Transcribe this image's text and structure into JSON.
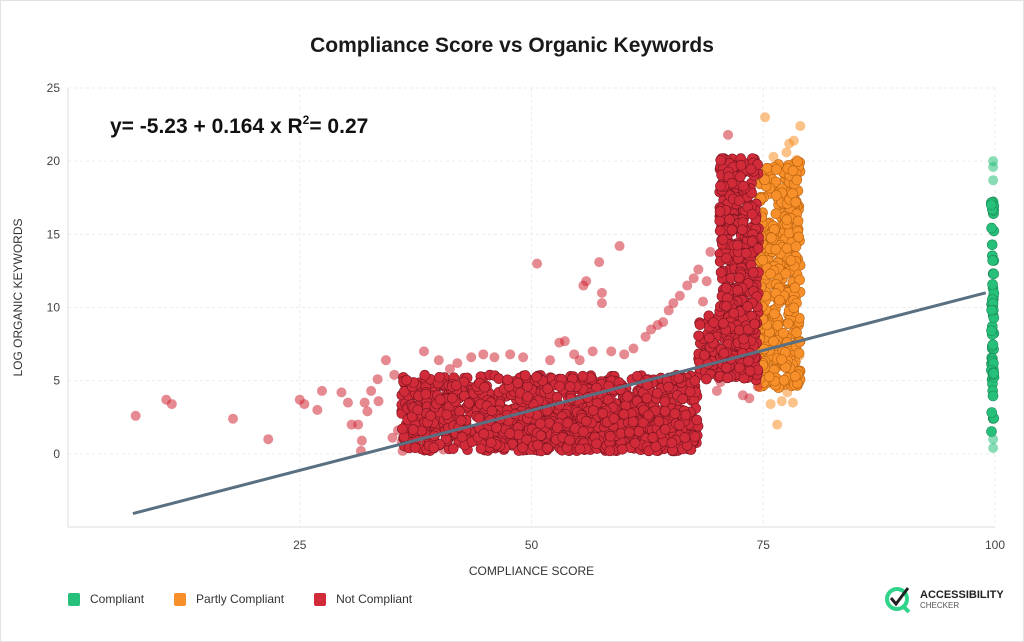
{
  "chart_data": {
    "type": "scatter",
    "title": "Compliance Score vs Organic Keywords",
    "xlabel": "COMPLIANCE SCORE",
    "ylabel": "LOG ORGANIC KEYWORDS",
    "xlim": [
      0,
      100
    ],
    "ylim": [
      -5,
      25
    ],
    "xticks": [
      25,
      50,
      75,
      100
    ],
    "yticks": [
      0,
      5,
      10,
      15,
      20,
      25
    ],
    "grid": true,
    "annotation": "y= -5.23 + 0.164 x R",
    "annotation_sup": "2",
    "annotation_tail": "= 0.27",
    "regression": {
      "intercept": -5.23,
      "slope": 0.164,
      "r2": 0.27,
      "x_range": [
        7,
        99
      ],
      "color": "#587082"
    },
    "legend_position": "bottom-left",
    "series": [
      {
        "name": "Compliant",
        "color": "#27c07a",
        "points": [
          [
            99.8,
            0.4
          ],
          [
            99.8,
            1.0
          ],
          [
            99.8,
            19.6
          ],
          [
            99.8,
            20.0
          ],
          [
            99.8,
            18.7
          ]
        ],
        "clusters": [
          {
            "x": [
              99.6,
              99.9
            ],
            "y": [
              1.5,
              18.5
            ],
            "count": 60
          }
        ]
      },
      {
        "name": "Partly Compliant",
        "color": "#f7902a",
        "points": [
          [
            75.2,
            23.0
          ],
          [
            78.3,
            21.4
          ],
          [
            79.0,
            22.4
          ],
          [
            77.8,
            21.2
          ],
          [
            76.1,
            20.3
          ],
          [
            77.5,
            20.6
          ],
          [
            78.6,
            20.1
          ],
          [
            76.5,
            2.0
          ],
          [
            77.0,
            3.6
          ],
          [
            75.8,
            3.4
          ],
          [
            78.2,
            3.5
          ],
          [
            77.6,
            4.2
          ],
          [
            79.0,
            5.6
          ],
          [
            78.9,
            6.7
          ],
          [
            76.2,
            4.7
          ]
        ],
        "clusters": [
          {
            "x": [
              74.6,
              79.0
            ],
            "y": [
              4.5,
              20.0
            ],
            "count": 420
          }
        ]
      },
      {
        "name": "Not Compliant",
        "color": "#d12a39",
        "points": [
          [
            7.3,
            2.6
          ],
          [
            10.6,
            3.7
          ],
          [
            11.2,
            3.4
          ],
          [
            17.8,
            2.4
          ],
          [
            21.6,
            1.0
          ],
          [
            25.0,
            3.7
          ],
          [
            25.5,
            3.4
          ],
          [
            26.9,
            3.0
          ],
          [
            27.4,
            4.3
          ],
          [
            29.5,
            4.2
          ],
          [
            30.2,
            3.5
          ],
          [
            30.6,
            2.0
          ],
          [
            31.3,
            2.0
          ],
          [
            31.6,
            0.2
          ],
          [
            31.7,
            0.9
          ],
          [
            32.0,
            3.5
          ],
          [
            32.3,
            2.9
          ],
          [
            32.7,
            4.3
          ],
          [
            33.5,
            3.6
          ],
          [
            33.4,
            5.1
          ],
          [
            34.3,
            6.4
          ],
          [
            35.0,
            1.1
          ],
          [
            35.6,
            1.6
          ],
          [
            35.2,
            5.4
          ],
          [
            36.0,
            0.8
          ],
          [
            36.1,
            0.2
          ],
          [
            37.5,
            0.7
          ],
          [
            38.4,
            7.0
          ],
          [
            39.0,
            0.3
          ],
          [
            40.5,
            0.3
          ],
          [
            40.0,
            6.4
          ],
          [
            41.2,
            5.8
          ],
          [
            42.0,
            6.2
          ],
          [
            43.5,
            6.6
          ],
          [
            44.8,
            6.8
          ],
          [
            46.0,
            6.6
          ],
          [
            47.7,
            6.8
          ],
          [
            49.1,
            6.6
          ],
          [
            50.6,
            13.0
          ],
          [
            52.0,
            6.4
          ],
          [
            53.0,
            7.6
          ],
          [
            53.6,
            7.7
          ],
          [
            54.6,
            6.8
          ],
          [
            55.2,
            6.4
          ],
          [
            55.6,
            11.5
          ],
          [
            55.9,
            11.8
          ],
          [
            56.6,
            7.0
          ],
          [
            57.3,
            13.1
          ],
          [
            57.6,
            10.3
          ],
          [
            57.6,
            11.0
          ],
          [
            58.6,
            7.0
          ],
          [
            59.5,
            14.2
          ],
          [
            60.0,
            6.8
          ],
          [
            61.0,
            7.2
          ],
          [
            62.3,
            8.0
          ],
          [
            62.9,
            8.5
          ],
          [
            63.6,
            8.8
          ],
          [
            64.2,
            9.0
          ],
          [
            64.8,
            9.8
          ],
          [
            65.3,
            10.3
          ],
          [
            66.0,
            10.8
          ],
          [
            66.8,
            11.5
          ],
          [
            67.5,
            12.0
          ],
          [
            68.0,
            12.6
          ],
          [
            68.5,
            10.4
          ],
          [
            68.9,
            11.8
          ],
          [
            69.3,
            13.8
          ],
          [
            70.4,
            4.9
          ],
          [
            71.2,
            21.8
          ],
          [
            72.3,
            5.4
          ],
          [
            72.8,
            4.0
          ],
          [
            73.5,
            3.8
          ],
          [
            74.4,
            4.6
          ],
          [
            70.0,
            4.3
          ],
          [
            69.8,
            8.7
          ]
        ],
        "clusters": [
          {
            "x": [
              36.0,
              68.0
            ],
            "y": [
              0.2,
              5.4
            ],
            "count": 900
          },
          {
            "x": [
              44.0,
              68.0
            ],
            "y": [
              0.2,
              3.0
            ],
            "count": 300
          },
          {
            "x": [
              68.0,
              70.5
            ],
            "y": [
              5.0,
              9.5
            ],
            "count": 50
          },
          {
            "x": [
              70.3,
              74.5
            ],
            "y": [
              5.0,
              20.2
            ],
            "count": 420
          }
        ]
      }
    ]
  },
  "logo": {
    "line1": "ACCESSIBILITY",
    "line2": "CHECKER"
  }
}
